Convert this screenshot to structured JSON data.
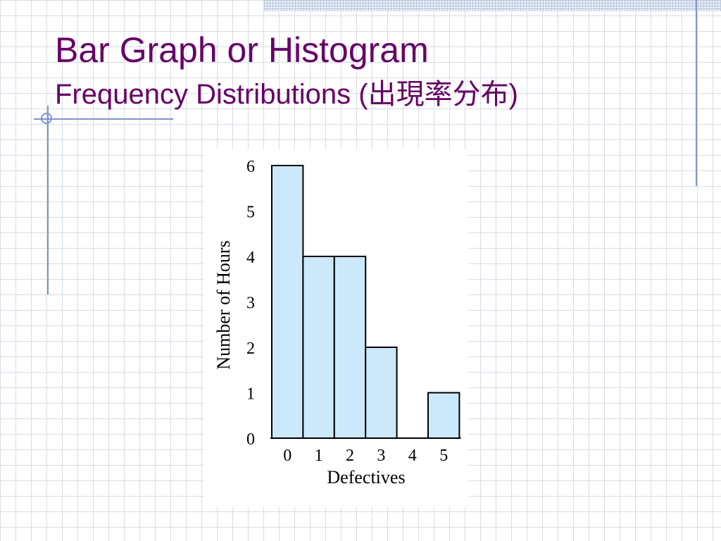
{
  "slide": {
    "title": "Bar Graph or Histogram",
    "subtitle": "Frequency Distributions (出現率分布)"
  },
  "colors": {
    "title": "#660066",
    "bar_fill": "#cce9fb",
    "bar_stroke": "#000000",
    "accent_line": "#7f95c6"
  },
  "chart_data": {
    "type": "bar",
    "categories": [
      "0",
      "1",
      "2",
      "3",
      "4",
      "5"
    ],
    "values": [
      6,
      4,
      4,
      2,
      0,
      1
    ],
    "xlabel": "Defectives",
    "ylabel": "Number of Hours",
    "ylim": [
      0,
      6
    ],
    "yticks": [
      "0",
      "1",
      "2",
      "3",
      "4",
      "5",
      "6"
    ],
    "grid": false,
    "legend": "none"
  }
}
